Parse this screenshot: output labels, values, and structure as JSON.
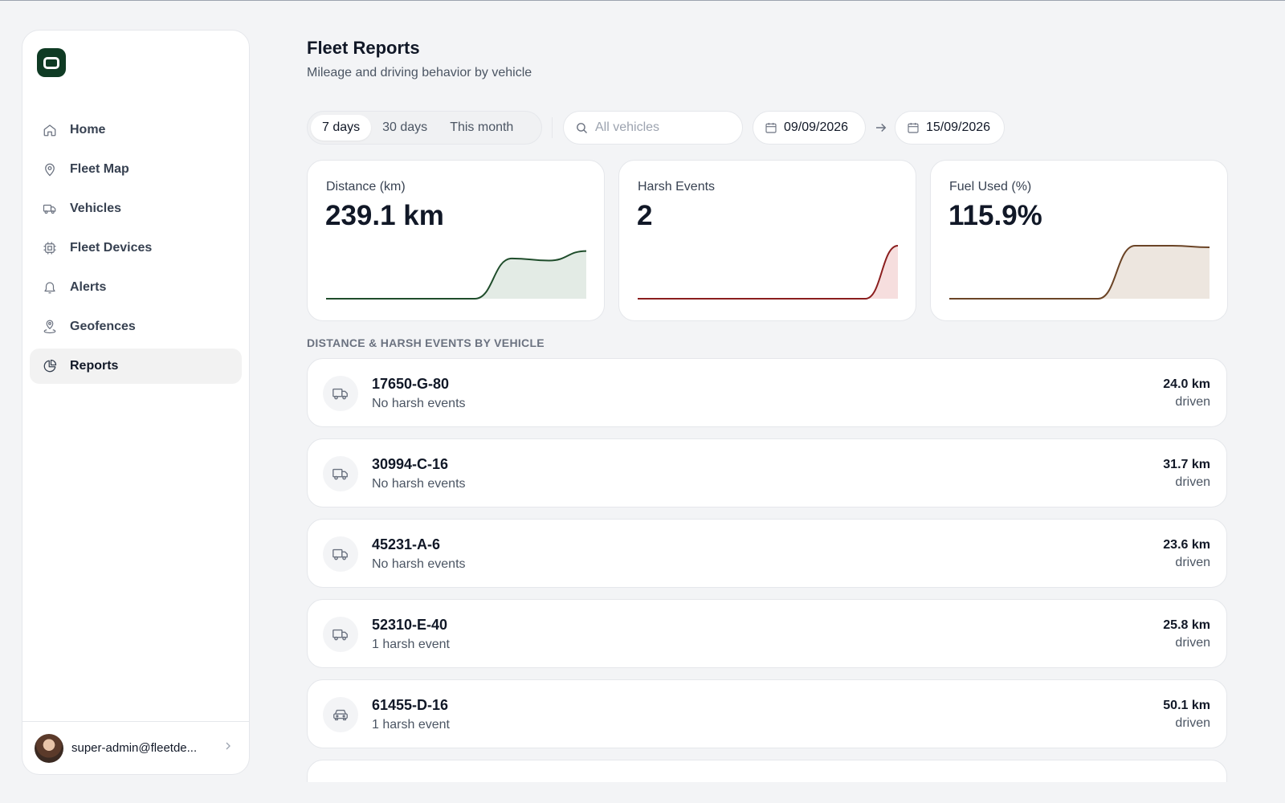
{
  "sidebar": {
    "items": [
      {
        "label": "Home",
        "icon": "home-icon",
        "active": false
      },
      {
        "label": "Fleet Map",
        "icon": "map-pin-icon",
        "active": false
      },
      {
        "label": "Vehicles",
        "icon": "truck-icon",
        "active": false
      },
      {
        "label": "Fleet Devices",
        "icon": "chip-icon",
        "active": false
      },
      {
        "label": "Alerts",
        "icon": "bell-icon",
        "active": false
      },
      {
        "label": "Geofences",
        "icon": "geofence-pin-icon",
        "active": false
      },
      {
        "label": "Reports",
        "icon": "pie-chart-icon",
        "active": true
      }
    ],
    "user": {
      "email": "super-admin@fleetde..."
    }
  },
  "header": {
    "title": "Fleet Reports",
    "subtitle": "Mileage and driving behavior by vehicle"
  },
  "filters": {
    "ranges": [
      "7 days",
      "30 days",
      "This month"
    ],
    "selected_range": "7 days",
    "search_placeholder": "All vehicles",
    "search_value": "",
    "date_from": "09/09/2026",
    "date_to": "15/09/2026"
  },
  "stats": [
    {
      "label": "Distance (km)",
      "value": "239.1 km",
      "line_color": "#1f4d2b",
      "fill_color": "#e3ebe5",
      "sparkline": [
        0,
        0,
        0,
        0,
        0,
        0.76,
        0.72,
        0.9
      ]
    },
    {
      "label": "Harsh Events",
      "value": "2",
      "line_color": "#8b1e1e",
      "fill_color": "#f6dede",
      "sparkline": [
        0,
        0,
        0,
        0,
        0,
        0,
        0,
        0,
        1
      ]
    },
    {
      "label": "Fuel Used (%)",
      "value": "115.9%",
      "line_color": "#6b4426",
      "fill_color": "#ede6df",
      "sparkline": [
        0,
        0,
        0,
        0,
        0,
        1,
        1,
        0.97
      ]
    }
  ],
  "vehicles_section": {
    "heading": "DISTANCE & HARSH EVENTS BY VEHICLE",
    "unit_label": "driven",
    "rows": [
      {
        "plate": "17650-G-80",
        "events": "No harsh events",
        "distance": "24.0 km",
        "icon": "truck-icon"
      },
      {
        "plate": "30994-C-16",
        "events": "No harsh events",
        "distance": "31.7 km",
        "icon": "truck-icon"
      },
      {
        "plate": "45231-A-6",
        "events": "No harsh events",
        "distance": "23.6 km",
        "icon": "truck-icon"
      },
      {
        "plate": "52310-E-40",
        "events": "1 harsh event",
        "distance": "25.8 km",
        "icon": "truck-icon"
      },
      {
        "plate": "61455-D-16",
        "events": "1 harsh event",
        "distance": "50.1 km",
        "icon": "car-icon"
      }
    ]
  },
  "colors": {
    "brand": "#0f3b24",
    "page_background": "#f3f4f6"
  }
}
